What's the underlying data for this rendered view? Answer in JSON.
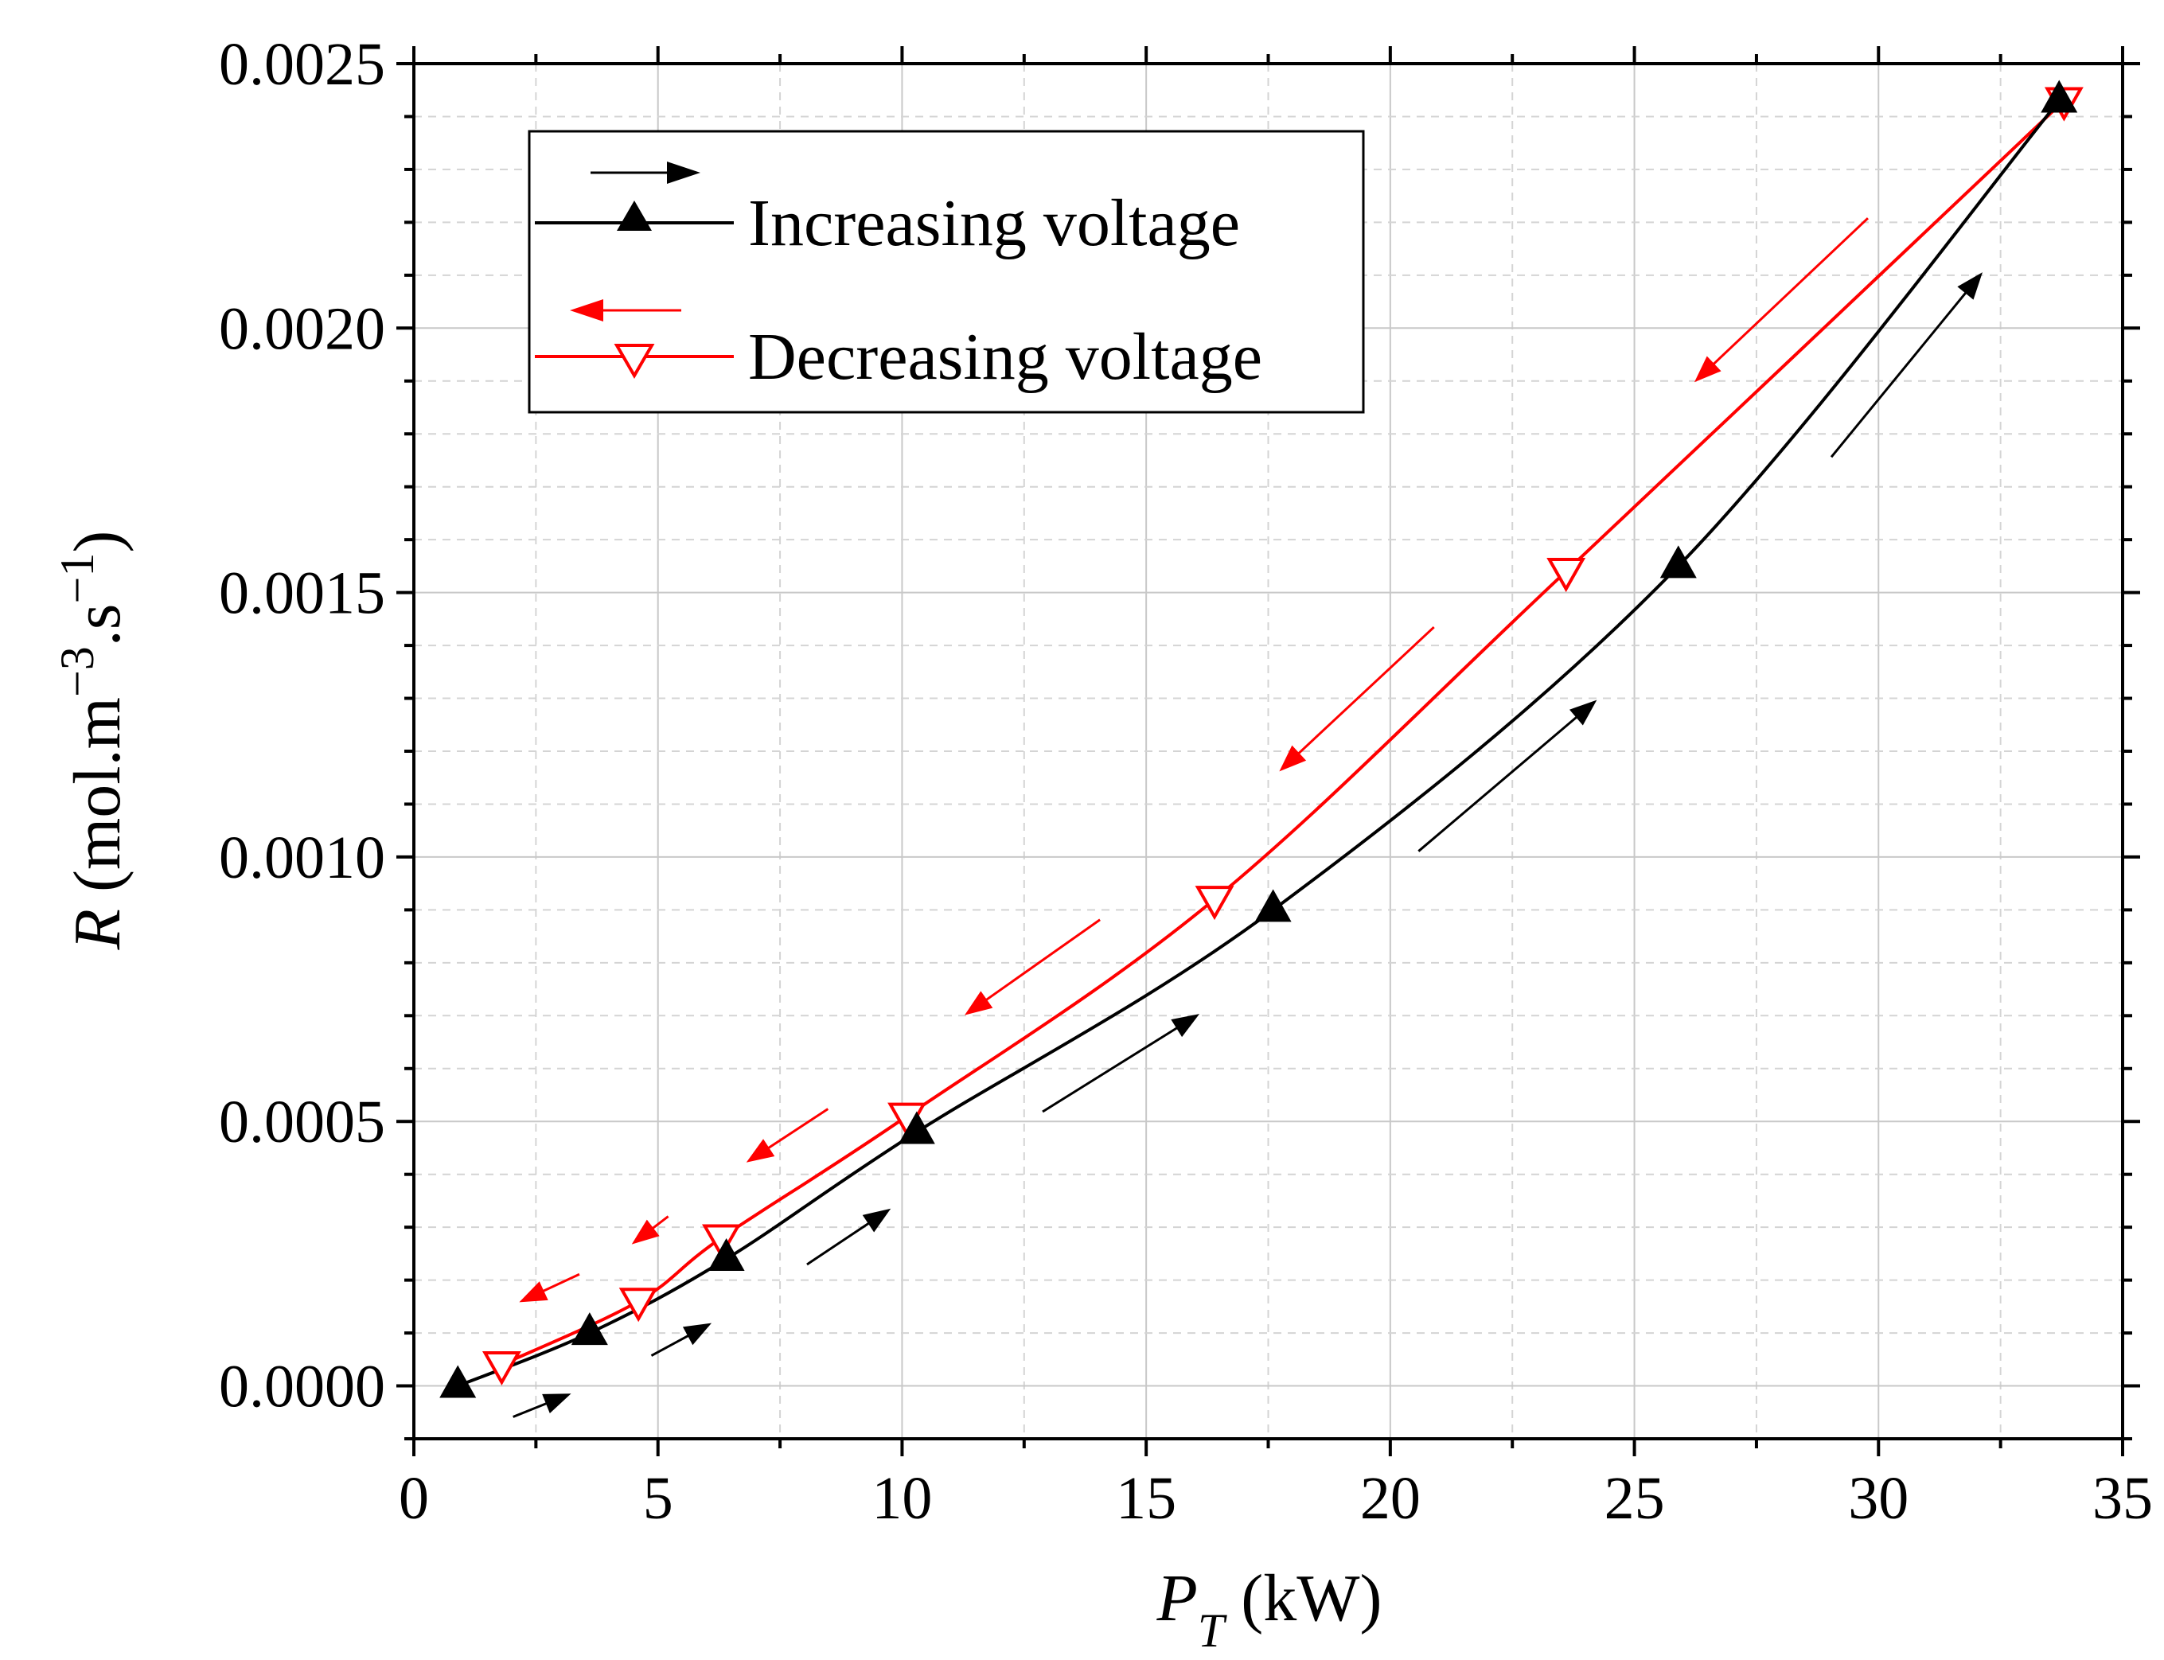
{
  "chart_data": {
    "type": "line",
    "x_title": {
      "var": "P",
      "sub": "T",
      "unit": " (kW)"
    },
    "y_title": {
      "var": "R",
      "unit": " (mol.m",
      "sup1": "−3",
      "mid": ".s",
      "sup2": "−1",
      "close": ")"
    },
    "xlim": [
      0,
      35
    ],
    "ylim": [
      -0.0001,
      0.0025
    ],
    "x_ticks": [
      0,
      5,
      10,
      15,
      20,
      25,
      30,
      35
    ],
    "x_tick_labels": [
      "0",
      "5",
      "10",
      "15",
      "20",
      "25",
      "30",
      "35"
    ],
    "y_ticks": [
      0,
      0.0005,
      0.001,
      0.0015,
      0.002,
      0.0025
    ],
    "y_tick_labels": [
      "0.0000",
      "0.0005",
      "0.0010",
      "0.0015",
      "0.0020",
      "0.0025"
    ],
    "grid": true,
    "legend_position": "top-left",
    "series": [
      {
        "name": "Increasing voltage",
        "color": "#000000",
        "marker": "filled-up-triangle",
        "arrow_direction": "right",
        "x": [
          0.9,
          3.6,
          6.4,
          10.3,
          17.6,
          25.9,
          33.7
        ],
        "y": [
          0.0,
          0.0001,
          0.00024,
          0.00048,
          0.0009,
          0.00155,
          0.00243
        ]
      },
      {
        "name": "Decreasing voltage",
        "color": "#ff0000",
        "marker": "open-down-triangle",
        "arrow_direction": "left",
        "x": [
          1.8,
          4.6,
          6.3,
          10.1,
          16.4,
          23.6,
          33.8
        ],
        "y": [
          4e-05,
          0.00016,
          0.00028,
          0.00051,
          0.00092,
          0.00154,
          0.00243
        ]
      }
    ]
  }
}
